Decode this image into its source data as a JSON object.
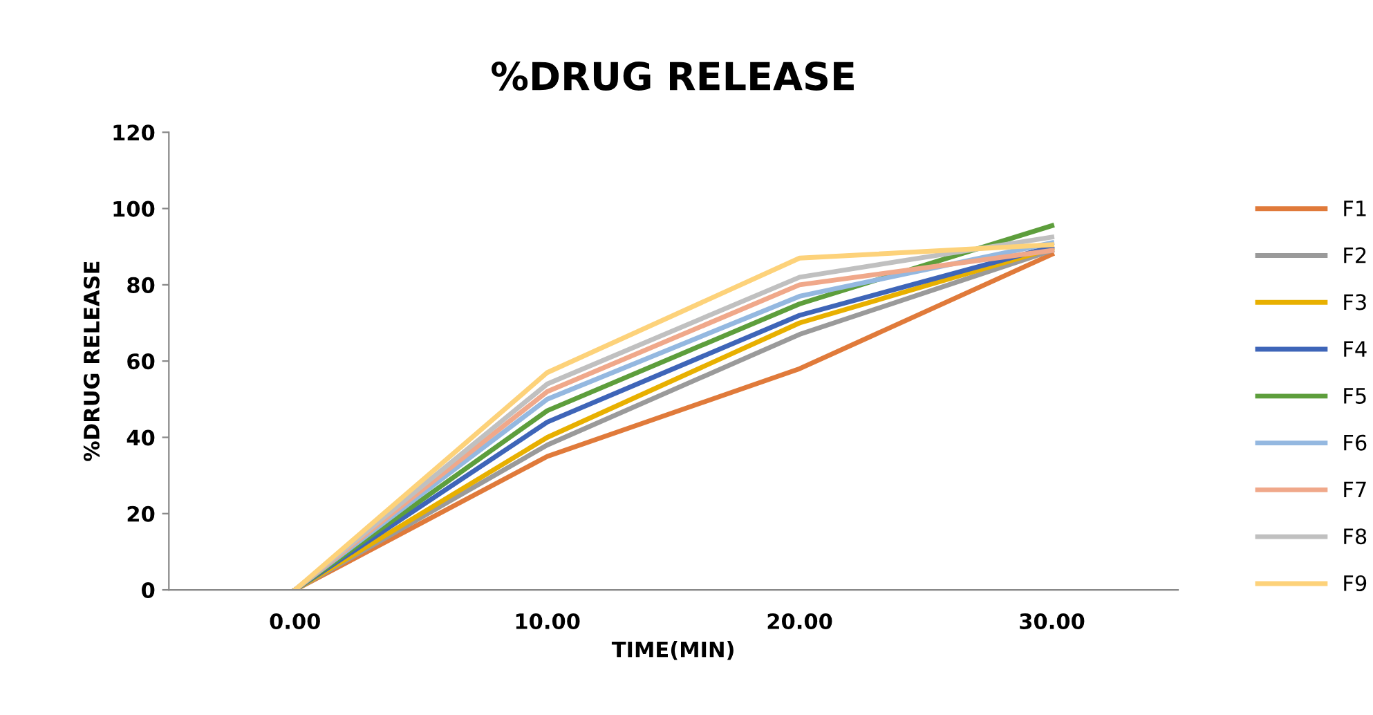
{
  "chart_data": {
    "type": "line",
    "title": "%DRUG RELEASE",
    "xlabel": "TIME(MIN)",
    "ylabel": "%DRUG RELEASE",
    "categories": [
      "0.00",
      "10.00",
      "20.00",
      "30.00"
    ],
    "ylim": [
      0,
      120
    ],
    "yticks": [
      0,
      20,
      40,
      60,
      80,
      100,
      120
    ],
    "grid": false,
    "legend": "right",
    "marker": "none",
    "line_style": "solid",
    "series": [
      {
        "name": "F1",
        "color": "#e07a3a",
        "values": [
          0,
          35,
          58,
          88
        ]
      },
      {
        "name": "F2",
        "color": "#9a9a9a",
        "values": [
          0,
          38,
          67,
          89
        ]
      },
      {
        "name": "F3",
        "color": "#e8b000",
        "values": [
          0,
          40,
          70,
          89.5
        ]
      },
      {
        "name": "F4",
        "color": "#3e65b8",
        "values": [
          0,
          44,
          72,
          90
        ]
      },
      {
        "name": "F5",
        "color": "#5d9e3c",
        "values": [
          0,
          47,
          75,
          95.5
        ]
      },
      {
        "name": "F6",
        "color": "#94b8e0",
        "values": [
          0,
          50,
          77,
          91
        ]
      },
      {
        "name": "F7",
        "color": "#f0a88a",
        "values": [
          0,
          52,
          80,
          89
        ]
      },
      {
        "name": "F8",
        "color": "#c0c0c0",
        "values": [
          0,
          54,
          82,
          92.5
        ]
      },
      {
        "name": "F9",
        "color": "#fdd27a",
        "values": [
          0,
          57,
          87,
          90.5
        ]
      }
    ]
  }
}
